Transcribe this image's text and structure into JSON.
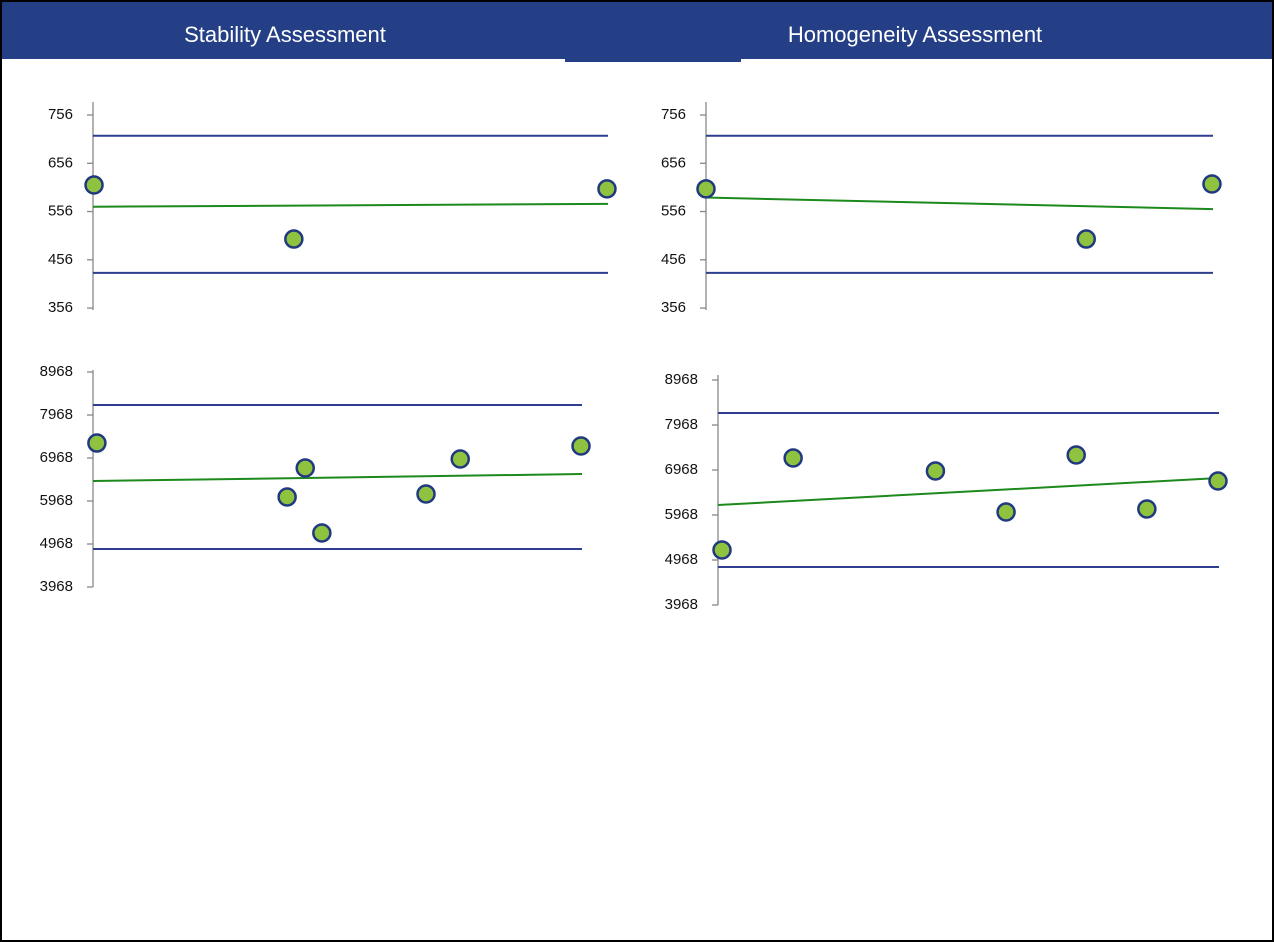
{
  "header": {
    "left_title": "Stability Assessment",
    "right_title": "Homogeneity Assessment"
  },
  "chart_data": [
    {
      "type": "scatter",
      "ylim": [
        352,
        783
      ],
      "yticks": [
        356,
        456,
        556,
        656,
        756
      ],
      "xlim": [
        0,
        10
      ],
      "x": [
        0.02,
        3.9,
        9.98
      ],
      "values": [
        611,
        499,
        603
      ],
      "upper_limit": 713,
      "lower_limit": 429,
      "trend": [
        566,
        572
      ],
      "point_color": "#8fc23f",
      "point_edge": "#21397f",
      "limit_color": "#2e3f8f",
      "trend_color": "#1c8a1c"
    },
    {
      "type": "scatter",
      "ylim": [
        352,
        783
      ],
      "yticks": [
        356,
        456,
        556,
        656,
        756
      ],
      "xlim": [
        0,
        10
      ],
      "x": [
        0,
        7.5,
        9.98
      ],
      "values": [
        603,
        499,
        613
      ],
      "upper_limit": 713,
      "lower_limit": 429,
      "trend": [
        585,
        561
      ],
      "point_color": "#8fc23f",
      "point_edge": "#21397f",
      "limit_color": "#2e3f8f",
      "trend_color": "#1c8a1c"
    },
    {
      "type": "scatter",
      "ylim": [
        3968,
        9015
      ],
      "yticks": [
        3968,
        4968,
        5968,
        6968,
        7968,
        8968
      ],
      "xlim": [
        0,
        10
      ],
      "x": [
        0.08,
        3.97,
        4.34,
        4.68,
        6.81,
        7.51,
        9.98
      ],
      "values": [
        7316,
        6061,
        6735,
        5224,
        6131,
        6945,
        7247
      ],
      "upper_limit": 8200,
      "lower_limit": 4852,
      "trend": [
        6433,
        6596
      ],
      "point_color": "#8fc23f",
      "point_edge": "#21397f",
      "limit_color": "#2e3f8f",
      "trend_color": "#1c8a1c"
    },
    {
      "type": "scatter",
      "ylim": [
        3968,
        9079
      ],
      "yticks": [
        3968,
        4968,
        5968,
        6968,
        7968,
        8968
      ],
      "xlim": [
        0,
        10
      ],
      "x": [
        0.08,
        1.5,
        4.34,
        5.75,
        7.15,
        8.56,
        9.98
      ],
      "values": [
        5190,
        7235,
        6946,
        6035,
        7302,
        6101,
        6724
      ],
      "upper_limit": 8235,
      "lower_limit": 4812,
      "trend": [
        6190,
        6790
      ],
      "point_color": "#8fc23f",
      "point_edge": "#21397f",
      "limit_color": "#2e3f8f",
      "trend_color": "#1c8a1c"
    }
  ]
}
